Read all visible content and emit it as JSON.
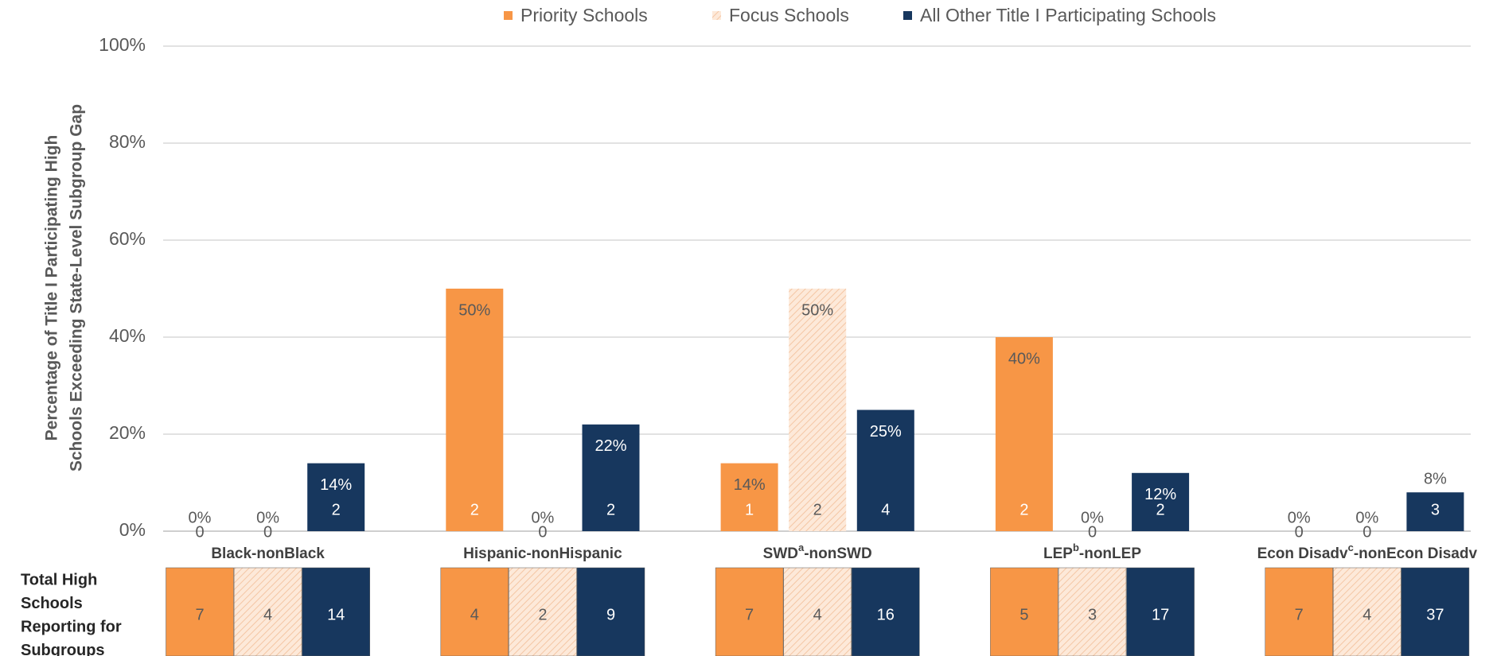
{
  "chart_data": {
    "type": "bar",
    "y_label": [
      "Percentage of Title I Participating High",
      "Schools Exceeding State-Level Subgroup Gap"
    ],
    "categories": [
      [
        "Black-nonBlack"
      ],
      [
        "Hispanic-nonHispanic"
      ],
      [
        "SWD",
        "a",
        "-nonSWD"
      ],
      [
        "LEP",
        "b",
        "-nonLEP"
      ],
      [
        "Econ Disadv",
        "c",
        "-nonEcon Disadv"
      ]
    ],
    "series": [
      {
        "name": "Priority Schools",
        "color": "#f79646",
        "pattern": false,
        "values": [
          0,
          50,
          14,
          40,
          0
        ],
        "value_labels": [
          "0%",
          "50%",
          "14%",
          "40%",
          "0%"
        ],
        "counts": [
          0,
          2,
          1,
          2,
          0
        ],
        "totals": [
          7,
          4,
          7,
          5,
          7
        ]
      },
      {
        "name": "Focus Schools",
        "color": "#fde9d9",
        "pattern": true,
        "values": [
          0,
          0,
          50,
          0,
          0
        ],
        "value_labels": [
          "0%",
          "0%",
          "50%",
          "0%",
          "0%"
        ],
        "counts": [
          0,
          0,
          2,
          0,
          0
        ],
        "totals": [
          4,
          2,
          4,
          3,
          4
        ]
      },
      {
        "name": "All Other Title I Participating Schools",
        "color": "#17375e",
        "pattern": false,
        "values": [
          14,
          22,
          25,
          12,
          8
        ],
        "value_labels": [
          "14%",
          "22%",
          "25%",
          "12%",
          "8%"
        ],
        "counts": [
          2,
          2,
          4,
          2,
          3
        ],
        "totals": [
          14,
          9,
          16,
          17,
          37
        ]
      }
    ],
    "table_label": [
      "Total High",
      "Schools",
      "Reporting for",
      "Subgroups"
    ],
    "ylim": [
      0,
      100
    ],
    "yticks": [
      {
        "value": 0,
        "label": "0%"
      },
      {
        "value": 20,
        "label": "20%"
      },
      {
        "value": 40,
        "label": "40%"
      },
      {
        "value": 60,
        "label": "60%"
      },
      {
        "value": 80,
        "label": "80%"
      },
      {
        "value": 100,
        "label": "100%"
      }
    ],
    "grid": true,
    "legend": "top"
  }
}
